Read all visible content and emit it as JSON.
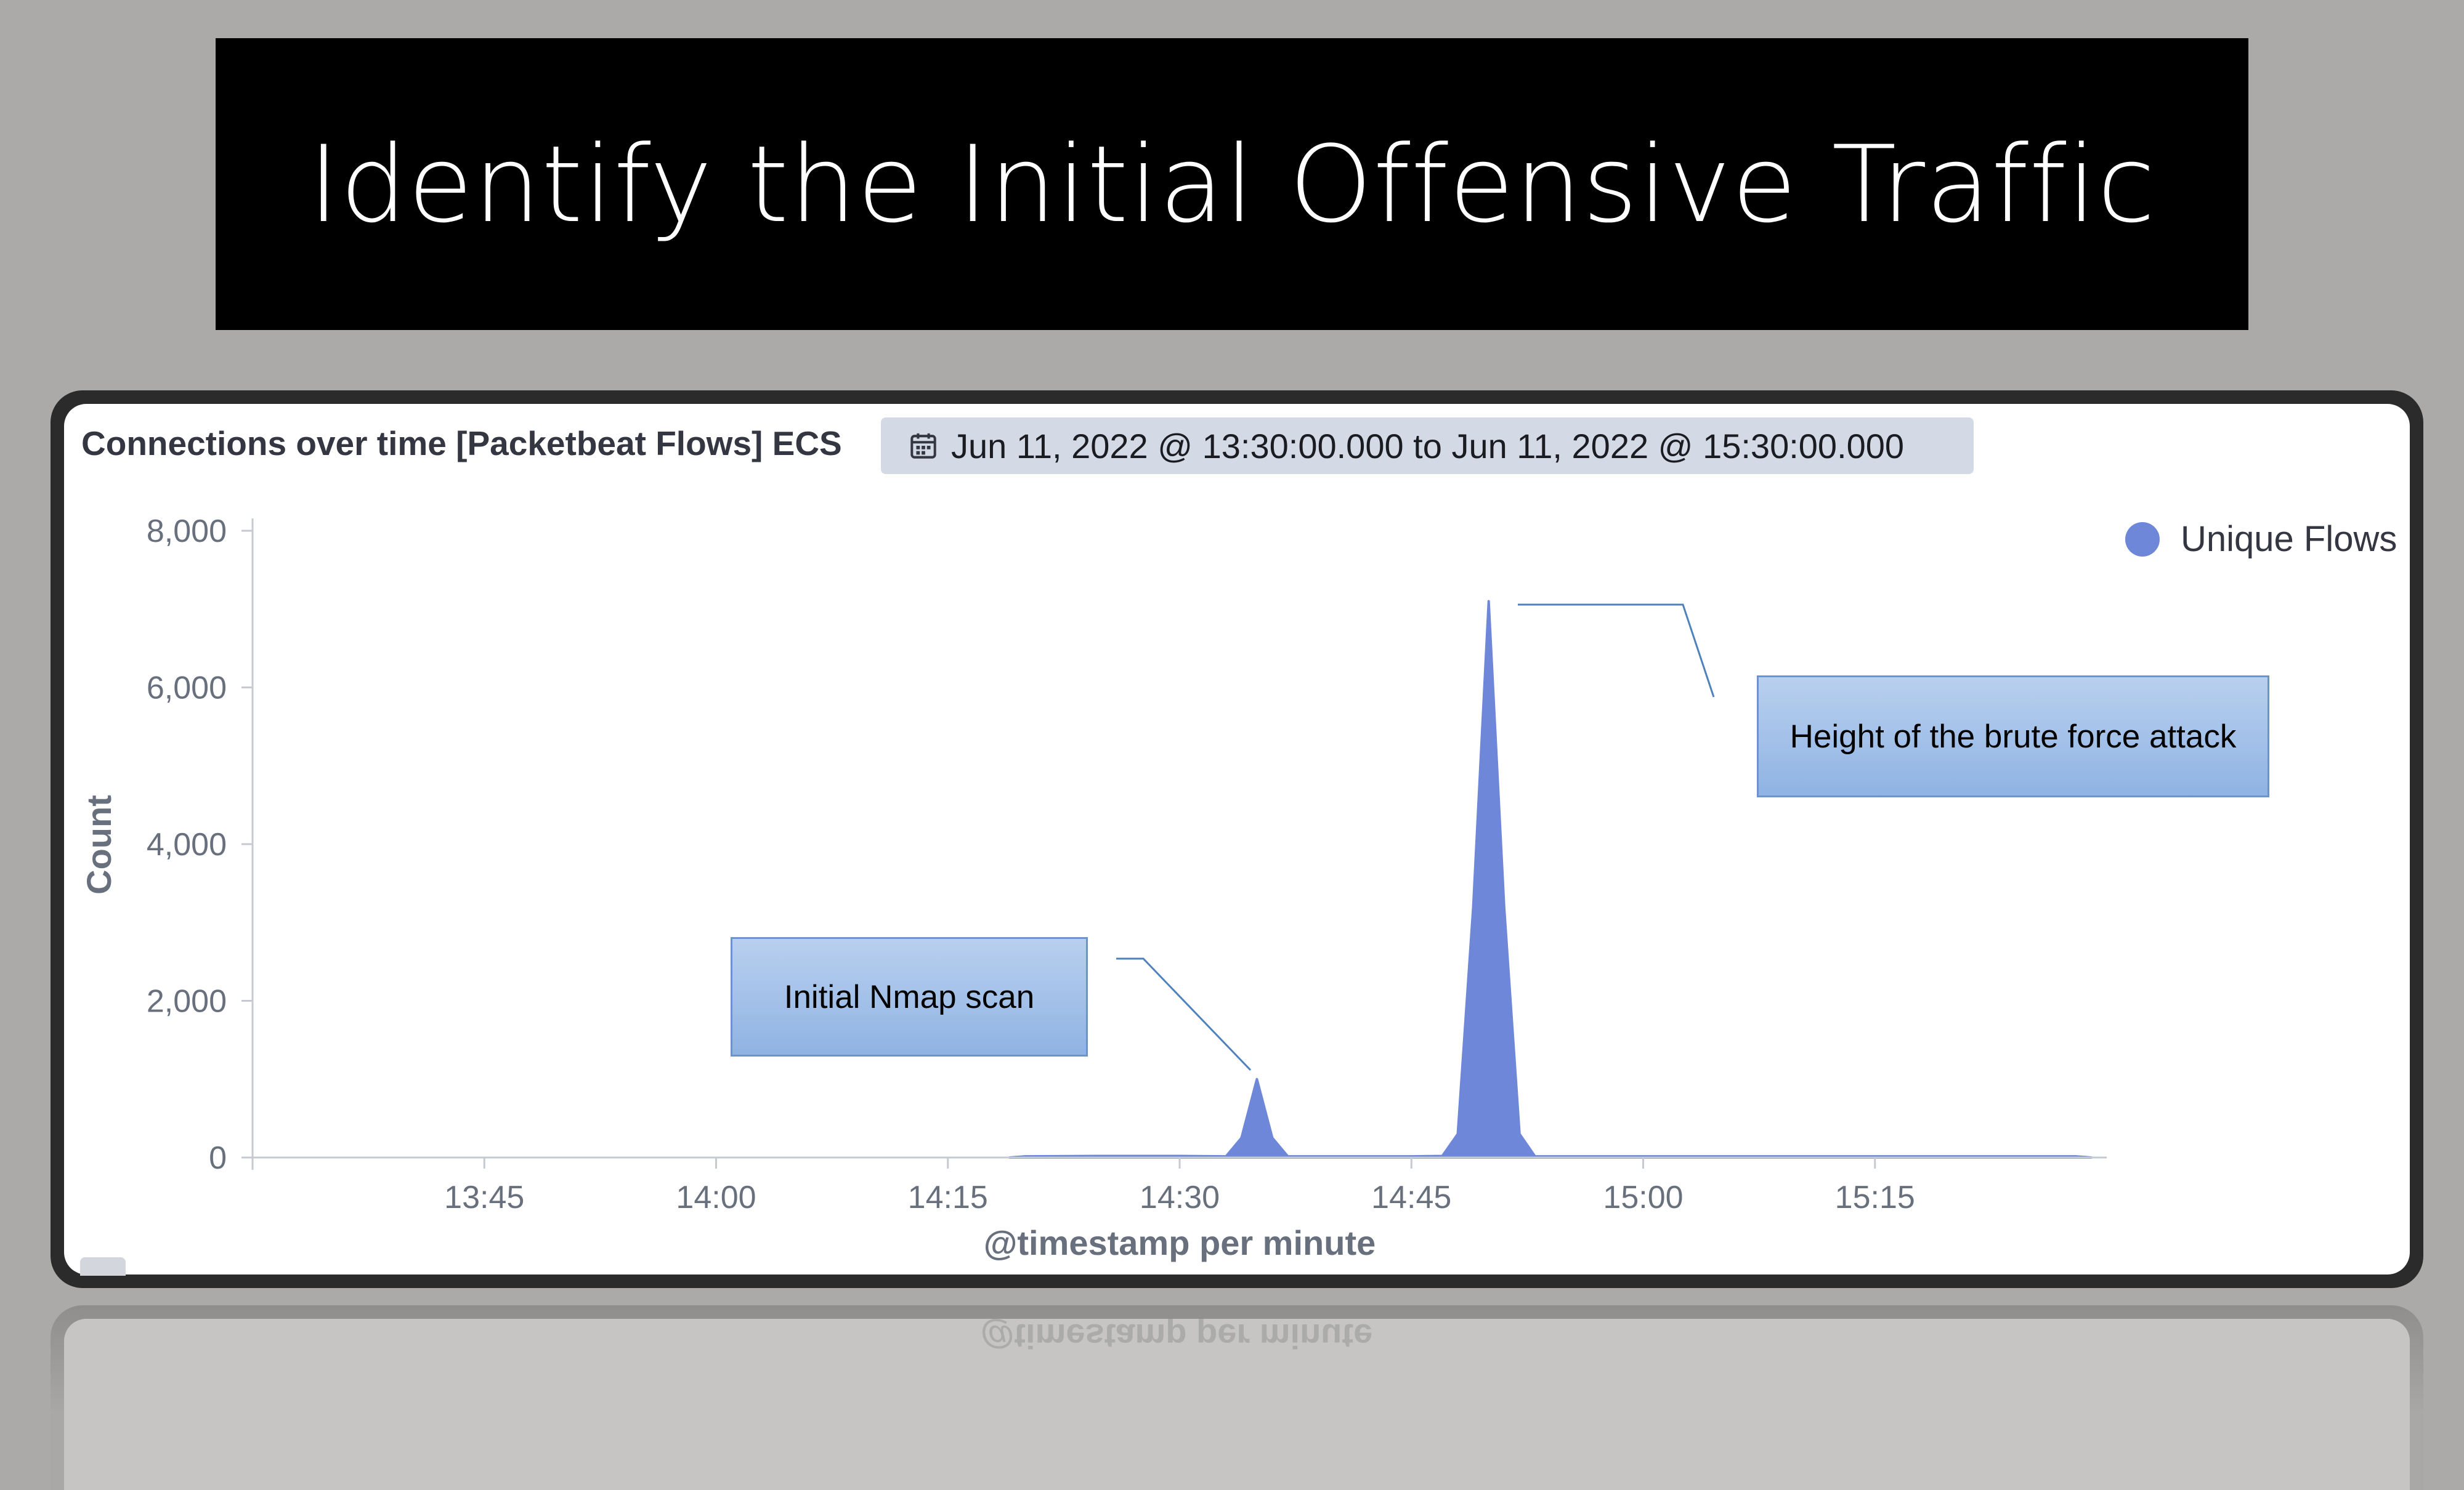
{
  "slide": {
    "title": "Identify the Initial Offensive Traffic"
  },
  "panel": {
    "title": "Connections over time [Packetbeat Flows] ECS",
    "time_range": "Jun 11, 2022 @ 13:30:00.000 to Jun 11, 2022 @ 15:30:00.000"
  },
  "annotations": {
    "brute_force": "Height of the brute force attack",
    "nmap": "Initial Nmap scan"
  },
  "colors": {
    "series": "#6f87d8",
    "title_bar": "#000000",
    "background": "#abaaa9"
  },
  "icons": {
    "time_badge": "calendar-icon"
  },
  "chart_data": {
    "type": "area",
    "xlabel": "@timestamp per minute",
    "ylabel": "Count",
    "x_range": [
      "13:30",
      "15:30"
    ],
    "ylim": [
      0,
      8000
    ],
    "yticks": [
      0,
      2000,
      4000,
      6000,
      8000
    ],
    "ytick_labels": [
      "0",
      "2,000",
      "4,000",
      "6,000",
      "8,000"
    ],
    "xtick_labels": [
      "13:45",
      "14:00",
      "14:15",
      "14:30",
      "14:45",
      "15:00",
      "15:15"
    ],
    "legend": "top-right",
    "series": [
      {
        "name": "Unique Flows",
        "points": [
          [
            "14:19",
            0
          ],
          [
            "14:20",
            15
          ],
          [
            "14:25",
            20
          ],
          [
            "14:30",
            20
          ],
          [
            "14:33",
            15
          ],
          [
            "14:34",
            250
          ],
          [
            "14:35",
            1000
          ],
          [
            "14:36",
            250
          ],
          [
            "14:37",
            15
          ],
          [
            "14:45",
            15
          ],
          [
            "14:47",
            20
          ],
          [
            "14:48",
            300
          ],
          [
            "14:49",
            3200
          ],
          [
            "14:50",
            7100
          ],
          [
            "14:51",
            3200
          ],
          [
            "14:52",
            300
          ],
          [
            "14:53",
            15
          ],
          [
            "15:00",
            15
          ],
          [
            "15:15",
            15
          ],
          [
            "15:28",
            15
          ],
          [
            "15:29",
            0
          ]
        ]
      }
    ]
  }
}
